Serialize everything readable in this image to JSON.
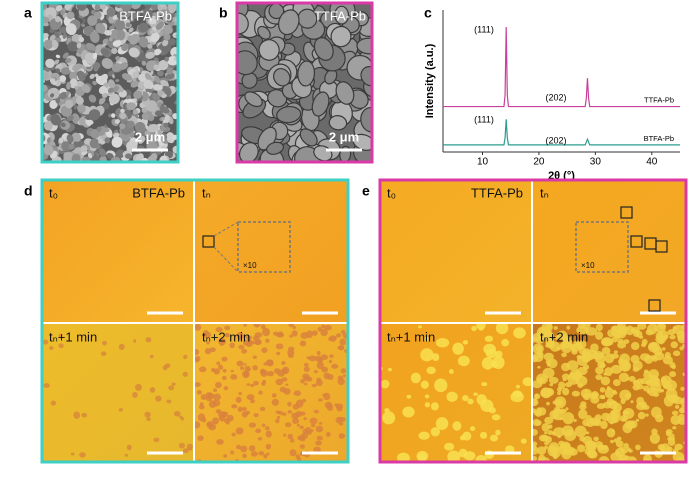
{
  "figure": {
    "panels": {
      "a": {
        "label": "a",
        "sample": "BTFA-Pb",
        "scale": "2 μm"
      },
      "b": {
        "label": "b",
        "sample": "TTFA-Pb",
        "scale": "2 μm"
      },
      "c": {
        "label": "c"
      },
      "d": {
        "label": "d",
        "sample": "BTFA-Pb",
        "frames": [
          "t₀",
          "tₙ",
          "tₙ+1 min",
          "tₙ+2 min"
        ],
        "zoom": "×10"
      },
      "e": {
        "label": "e",
        "sample": "TTFA-Pb",
        "frames": [
          "t₀",
          "tₙ",
          "tₙ+1 min",
          "tₙ+2 min"
        ],
        "zoom": "×10"
      }
    }
  },
  "chart_data": {
    "type": "line",
    "xlabel": "2θ (°)",
    "ylabel": "Intensity (a.u.)",
    "x": [
      3,
      13.8,
      14.0,
      14.2,
      14.4,
      14.6,
      28.2,
      28.4,
      28.6,
      28.8,
      29.0,
      45
    ],
    "series": [
      {
        "name": "TTFA-Pb",
        "color": "#c8409c",
        "values": [
          32,
          32,
          40,
          88,
          40,
          32,
          32,
          38,
          52,
          38,
          32,
          32
        ]
      },
      {
        "name": "BTFA-Pb",
        "color": "#2a9d8f",
        "values": [
          5,
          5,
          10,
          23,
          10,
          5,
          5,
          7,
          9,
          7,
          5,
          5
        ]
      }
    ],
    "annotations": [
      "(111)",
      "(202)",
      "(111)",
      "(202)"
    ],
    "xlim": [
      3,
      45
    ],
    "ylim": [
      0,
      100
    ],
    "xticks": [
      10,
      20,
      30,
      40
    ]
  }
}
